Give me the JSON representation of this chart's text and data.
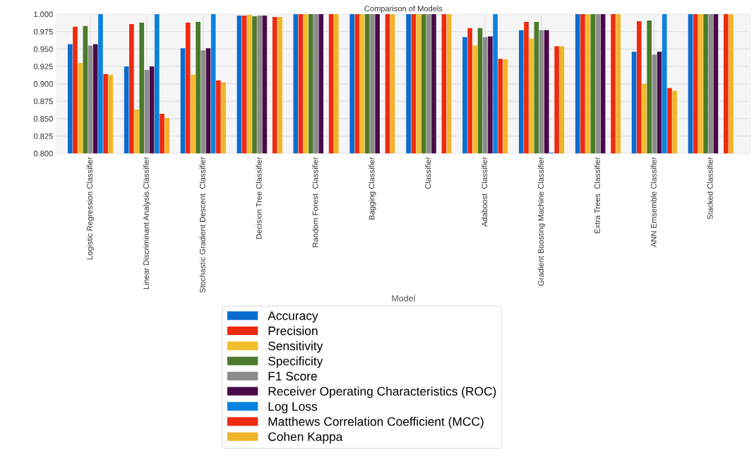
{
  "chart_data": {
    "type": "bar",
    "title": "Comparison of Models",
    "xlabel": "Model",
    "categories": [
      "Logistic Regression Classifier",
      "Linear Discriminant Analysis Classifier",
      "Stochastic Gradient Descent  Classifier",
      "Decision Tree Classifier",
      "Random Forest  Classifier",
      "Bagging Classifier",
      "Classifier",
      "Adaboost  Classifier",
      "Gradient Boosting Machine Classifier",
      "Extra Trees  Classifier",
      "ANN Emsemble Classifier",
      "Stacked Classifier"
    ],
    "series": [
      {
        "name": "Accuracy",
        "color": "#0a6bd0",
        "values": [
          0.957,
          0.925,
          0.951,
          0.998,
          1.0,
          1.0,
          1.0,
          0.967,
          0.977,
          1.0,
          0.946,
          1.0
        ]
      },
      {
        "name": "Precision",
        "color": "#ee2a0f",
        "values": [
          0.982,
          0.986,
          0.988,
          0.998,
          1.0,
          1.0,
          1.0,
          0.98,
          0.989,
          1.0,
          0.99,
          1.0
        ]
      },
      {
        "name": "Sensitivity",
        "color": "#f2bd2a",
        "values": [
          0.93,
          0.863,
          0.913,
          0.999,
          1.0,
          1.0,
          1.0,
          0.955,
          0.965,
          1.0,
          0.9,
          1.0
        ]
      },
      {
        "name": "Specificity",
        "color": "#4b7b2a",
        "values": [
          0.983,
          0.988,
          0.989,
          0.997,
          1.0,
          1.0,
          1.0,
          0.98,
          0.989,
          1.0,
          0.991,
          1.0
        ]
      },
      {
        "name": "F1 Score",
        "color": "#8c8c8c",
        "values": [
          0.955,
          0.92,
          0.948,
          0.998,
          1.0,
          1.0,
          1.0,
          0.967,
          0.977,
          1.0,
          0.942,
          1.0
        ]
      },
      {
        "name": "Receiver Operating Characteristics (ROC)",
        "color": "#4a0a4a",
        "values": [
          0.957,
          0.925,
          0.951,
          0.998,
          1.0,
          1.0,
          1.0,
          0.968,
          0.977,
          1.0,
          0.946,
          1.0
        ]
      },
      {
        "name": "Log Loss",
        "color": "#0a82e0",
        "values": [
          1.0,
          1.0,
          1.0,
          null,
          null,
          null,
          null,
          1.0,
          0.801,
          null,
          1.0,
          null
        ]
      },
      {
        "name": "Matthews Correlation Coefficient (MCC)",
        "color": "#ee2a0f",
        "values": [
          0.914,
          0.857,
          0.905,
          0.996,
          1.0,
          1.0,
          1.0,
          0.936,
          0.954,
          1.0,
          0.894,
          1.0
        ]
      },
      {
        "name": "Cohen Kappa",
        "color": "#f0b429",
        "values": [
          0.913,
          0.851,
          0.902,
          0.996,
          1.0,
          1.0,
          1.0,
          0.935,
          0.954,
          1.0,
          0.89,
          1.0
        ]
      }
    ],
    "ylim": [
      0.8,
      1.0
    ],
    "yticks": [
      {
        "value": 0.8,
        "label": "0.800"
      },
      {
        "value": 0.825,
        "label": "0.825"
      },
      {
        "value": 0.85,
        "label": "0.850"
      },
      {
        "value": 0.875,
        "label": "0.875"
      },
      {
        "value": 0.9,
        "label": "0.900"
      },
      {
        "value": 0.925,
        "label": "0.925"
      },
      {
        "value": 0.95,
        "label": "0.950"
      },
      {
        "value": 0.975,
        "label": "0.975"
      },
      {
        "value": 1.0,
        "label": "1.000"
      }
    ],
    "grid": true,
    "legend": "bottom"
  }
}
